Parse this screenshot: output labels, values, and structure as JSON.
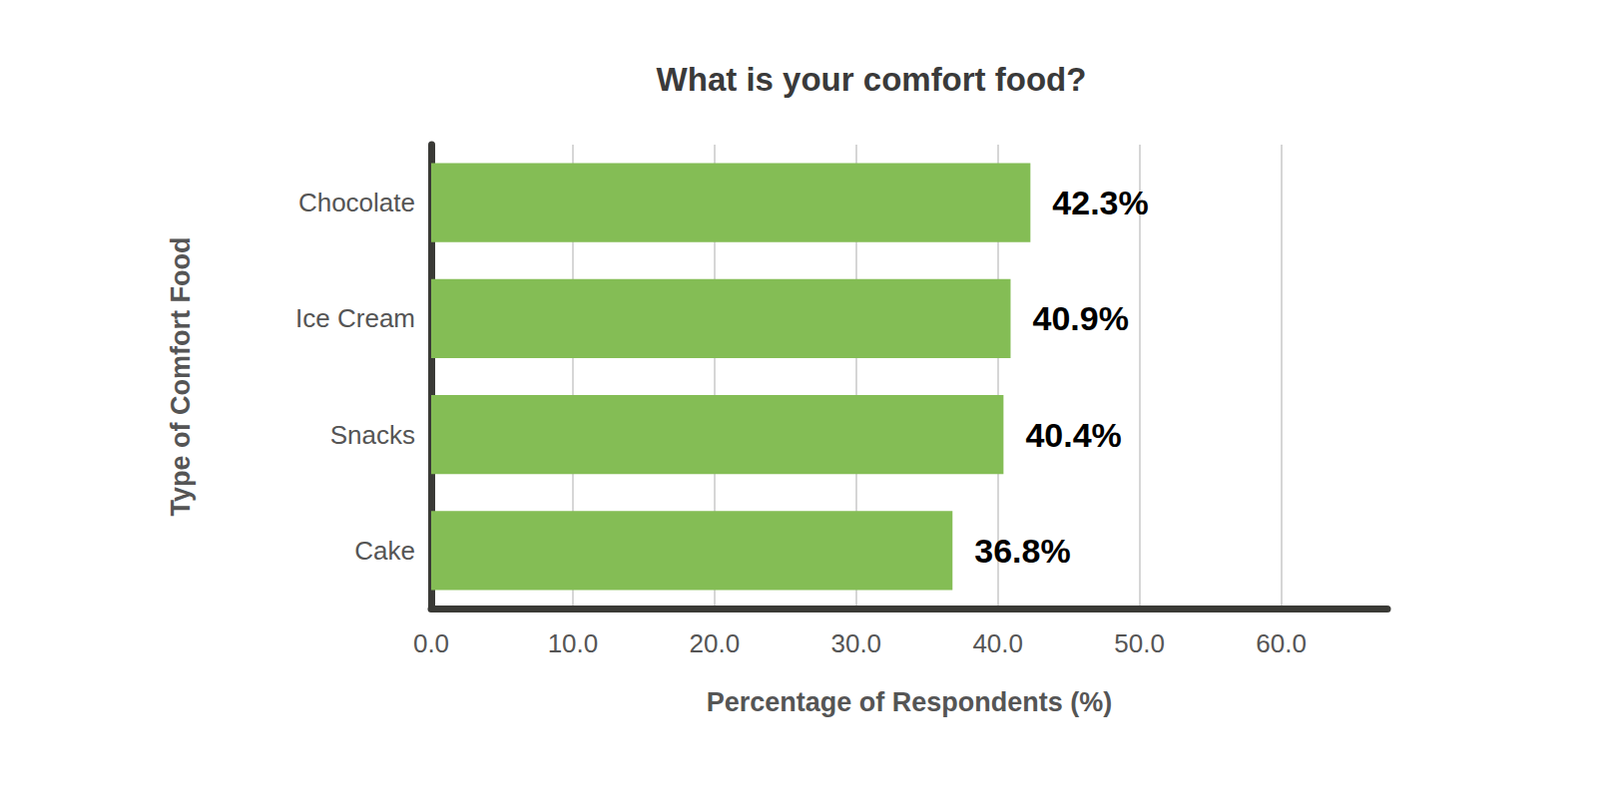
{
  "chart_data": {
    "type": "bar",
    "orientation": "horizontal",
    "title": "What is your comfort food?",
    "x_label": "Percentage of Respondents (%)",
    "y_label": "Type of Comfort Food",
    "categories": [
      "Chocolate",
      "Ice Cream",
      "Snacks",
      "Cake"
    ],
    "values": [
      42.3,
      40.9,
      40.4,
      36.8
    ],
    "value_labels": [
      "42.3%",
      "40.9%",
      "40.4%",
      "36.8%"
    ],
    "data_labels": true,
    "color": "#84bd55",
    "xlim": [
      0,
      67.5
    ],
    "xticks": [
      {
        "value": 0,
        "label": "0.0"
      },
      {
        "value": 10,
        "label": "10.0"
      },
      {
        "value": 20,
        "label": "20.0"
      },
      {
        "value": 30,
        "label": "30.0"
      },
      {
        "value": 40,
        "label": "40.0"
      },
      {
        "value": 50,
        "label": "50.0"
      },
      {
        "value": 60,
        "label": "60.0"
      }
    ],
    "grid": true
  }
}
